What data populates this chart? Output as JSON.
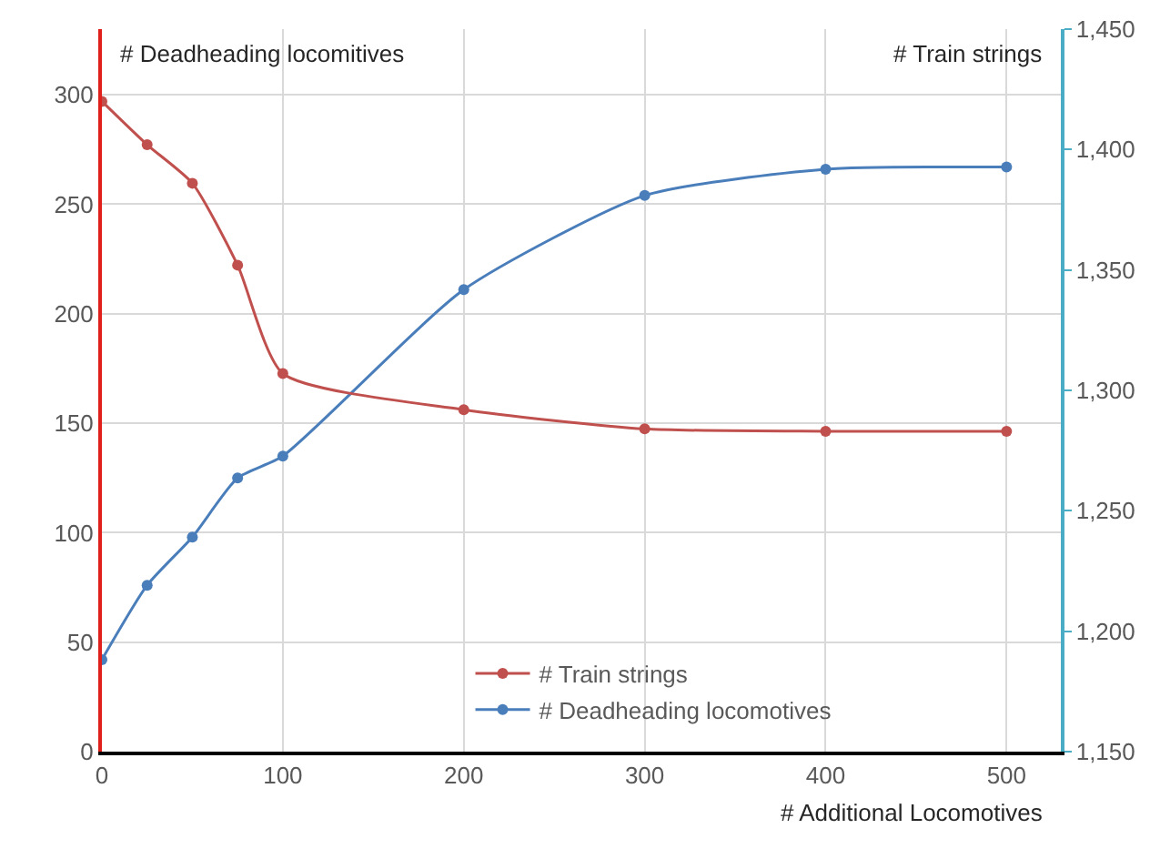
{
  "chart_data": {
    "type": "line",
    "xlabel": "# Additional Locomotives",
    "ylabel": "# Deadheading locomitives",
    "y2label": "# Train strings",
    "x": [
      0,
      25,
      50,
      75,
      100,
      200,
      300,
      400,
      500
    ],
    "series": [
      {
        "name": "# Train strings",
        "color": "#c0504d",
        "axis": "y2",
        "values": [
          1420,
          1402,
          1386,
          1352,
          1307,
          1292,
          1284,
          1283,
          1283
        ]
      },
      {
        "name": "# Deadheading locomotives",
        "color": "#4a7ebb",
        "values": [
          42,
          76,
          98,
          125,
          135,
          211,
          254,
          266,
          267
        ]
      }
    ],
    "xlim": [
      0,
      530
    ],
    "xticks": [
      0,
      100,
      200,
      300,
      400,
      500
    ],
    "ylim": [
      0,
      330
    ],
    "yticks": [
      0,
      50,
      100,
      150,
      200,
      250,
      300
    ],
    "y2lim": [
      1150,
      1450
    ],
    "y2ticks": [
      {
        "value": 1150,
        "label": "1,150"
      },
      {
        "value": 1200,
        "label": "1,200"
      },
      {
        "value": 1250,
        "label": "1,250"
      },
      {
        "value": 1300,
        "label": "1,300"
      },
      {
        "value": 1350,
        "label": "1,350"
      },
      {
        "value": 1400,
        "label": "1,400"
      },
      {
        "value": 1450,
        "label": "1,450"
      }
    ],
    "grid": true,
    "legend": "bottom",
    "marker": "circle",
    "line_style": "solid"
  }
}
